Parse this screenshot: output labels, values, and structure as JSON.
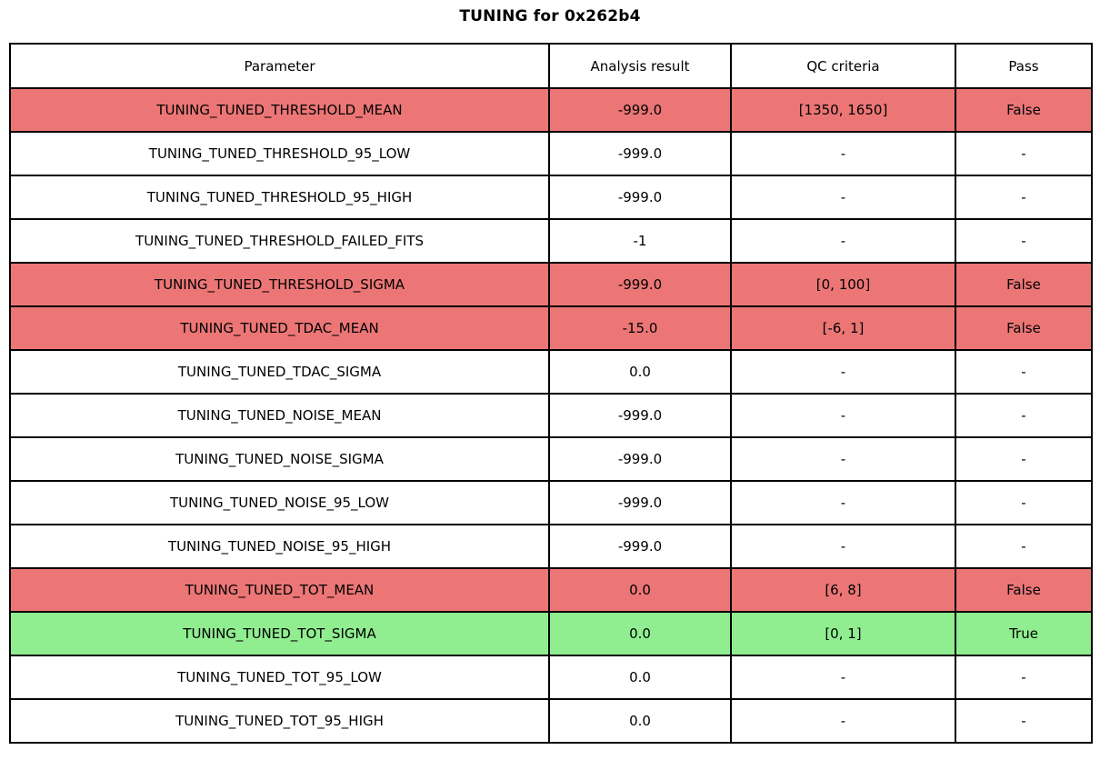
{
  "title": "TUNING for 0x262b4",
  "colors": {
    "fail": "#ec7676",
    "pass": "#90ee90",
    "none": "#ffffff",
    "border": "#000000",
    "text": "#000000"
  },
  "table": {
    "columns": [
      "Parameter",
      "Analysis result",
      "QC criteria",
      "Pass"
    ],
    "rows": [
      {
        "parameter": "TUNING_TUNED_THRESHOLD_MEAN",
        "result": "-999.0",
        "qc": "[1350, 1650]",
        "pass": "False",
        "status": "fail"
      },
      {
        "parameter": "TUNING_TUNED_THRESHOLD_95_LOW",
        "result": "-999.0",
        "qc": "-",
        "pass": "-",
        "status": "none"
      },
      {
        "parameter": "TUNING_TUNED_THRESHOLD_95_HIGH",
        "result": "-999.0",
        "qc": "-",
        "pass": "-",
        "status": "none"
      },
      {
        "parameter": "TUNING_TUNED_THRESHOLD_FAILED_FITS",
        "result": "-1",
        "qc": "-",
        "pass": "-",
        "status": "none"
      },
      {
        "parameter": "TUNING_TUNED_THRESHOLD_SIGMA",
        "result": "-999.0",
        "qc": "[0, 100]",
        "pass": "False",
        "status": "fail"
      },
      {
        "parameter": "TUNING_TUNED_TDAC_MEAN",
        "result": "-15.0",
        "qc": "[-6, 1]",
        "pass": "False",
        "status": "fail"
      },
      {
        "parameter": "TUNING_TUNED_TDAC_SIGMA",
        "result": "0.0",
        "qc": "-",
        "pass": "-",
        "status": "none"
      },
      {
        "parameter": "TUNING_TUNED_NOISE_MEAN",
        "result": "-999.0",
        "qc": "-",
        "pass": "-",
        "status": "none"
      },
      {
        "parameter": "TUNING_TUNED_NOISE_SIGMA",
        "result": "-999.0",
        "qc": "-",
        "pass": "-",
        "status": "none"
      },
      {
        "parameter": "TUNING_TUNED_NOISE_95_LOW",
        "result": "-999.0",
        "qc": "-",
        "pass": "-",
        "status": "none"
      },
      {
        "parameter": "TUNING_TUNED_NOISE_95_HIGH",
        "result": "-999.0",
        "qc": "-",
        "pass": "-",
        "status": "none"
      },
      {
        "parameter": "TUNING_TUNED_TOT_MEAN",
        "result": "0.0",
        "qc": "[6, 8]",
        "pass": "False",
        "status": "fail"
      },
      {
        "parameter": "TUNING_TUNED_TOT_SIGMA",
        "result": "0.0",
        "qc": "[0, 1]",
        "pass": "True",
        "status": "pass"
      },
      {
        "parameter": "TUNING_TUNED_TOT_95_LOW",
        "result": "0.0",
        "qc": "-",
        "pass": "-",
        "status": "none"
      },
      {
        "parameter": "TUNING_TUNED_TOT_95_HIGH",
        "result": "0.0",
        "qc": "-",
        "pass": "-",
        "status": "none"
      }
    ]
  },
  "chart_data": {
    "type": "table",
    "title": "TUNING for 0x262b4",
    "columns": [
      "Parameter",
      "Analysis result",
      "QC criteria",
      "Pass"
    ],
    "rows": [
      [
        "TUNING_TUNED_THRESHOLD_MEAN",
        "-999.0",
        "[1350, 1650]",
        "False"
      ],
      [
        "TUNING_TUNED_THRESHOLD_95_LOW",
        "-999.0",
        "-",
        "-"
      ],
      [
        "TUNING_TUNED_THRESHOLD_95_HIGH",
        "-999.0",
        "-",
        "-"
      ],
      [
        "TUNING_TUNED_THRESHOLD_FAILED_FITS",
        "-1",
        "-",
        "-"
      ],
      [
        "TUNING_TUNED_THRESHOLD_SIGMA",
        "-999.0",
        "[0, 100]",
        "False"
      ],
      [
        "TUNING_TUNED_TDAC_MEAN",
        "-15.0",
        "[-6, 1]",
        "False"
      ],
      [
        "TUNING_TUNED_TDAC_SIGMA",
        "0.0",
        "-",
        "-"
      ],
      [
        "TUNING_TUNED_NOISE_MEAN",
        "-999.0",
        "-",
        "-"
      ],
      [
        "TUNING_TUNED_NOISE_SIGMA",
        "-999.0",
        "-",
        "-"
      ],
      [
        "TUNING_TUNED_NOISE_95_LOW",
        "-999.0",
        "-",
        "-"
      ],
      [
        "TUNING_TUNED_NOISE_95_HIGH",
        "-999.0",
        "-",
        "-"
      ],
      [
        "TUNING_TUNED_TOT_MEAN",
        "0.0",
        "[6, 8]",
        "False"
      ],
      [
        "TUNING_TUNED_TOT_SIGMA",
        "0.0",
        "[0, 1]",
        "True"
      ],
      [
        "TUNING_TUNED_TOT_95_LOW",
        "0.0",
        "-",
        "-"
      ],
      [
        "TUNING_TUNED_TOT_95_HIGH",
        "0.0",
        "-",
        "-"
      ]
    ],
    "row_status": [
      "fail",
      "none",
      "none",
      "none",
      "fail",
      "fail",
      "none",
      "none",
      "none",
      "none",
      "none",
      "fail",
      "pass",
      "none",
      "none"
    ],
    "legend": "red row = QC fail, green row = QC pass, white row = no QC criteria"
  }
}
